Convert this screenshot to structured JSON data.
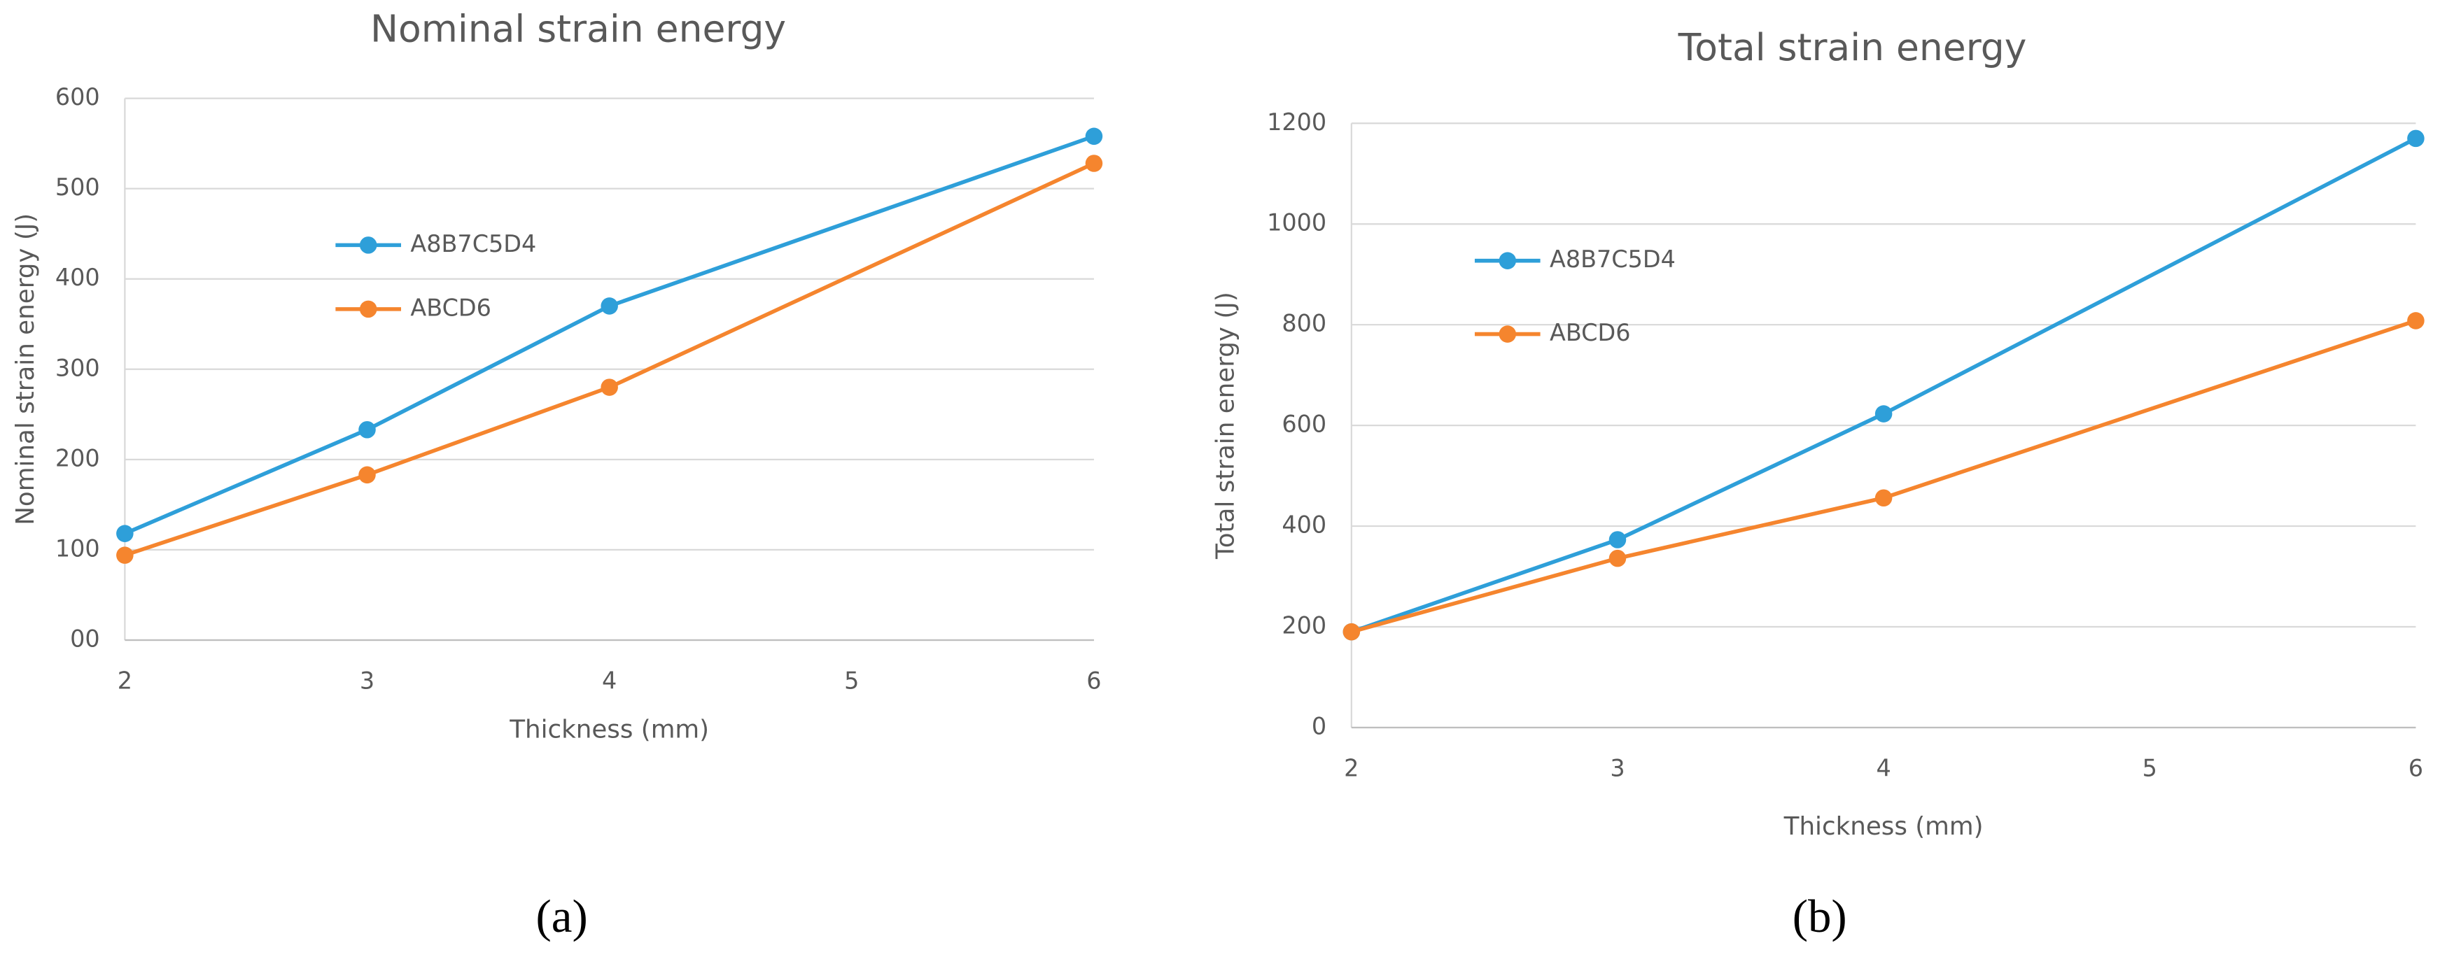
{
  "chart_data": [
    {
      "type": "line",
      "title": "Nominal strain energy",
      "x_label": "Thickness (mm)",
      "y_label": "Nominal strain energy (J)",
      "x": [
        2,
        3,
        4,
        6
      ],
      "xlim": [
        2,
        6
      ],
      "xticks": [
        2,
        3,
        4,
        5,
        6
      ],
      "ylim": [
        0,
        600
      ],
      "yticks": [
        {
          "value": 0,
          "label": "00"
        },
        100,
        200,
        300,
        400,
        500,
        600
      ],
      "grid": true,
      "series": [
        {
          "name": "A8B7C5D4",
          "color": "#2e9fd9",
          "values": [
            118,
            233,
            370,
            558
          ]
        },
        {
          "name": "ABCD6",
          "color": "#f5852e",
          "values": [
            94,
            183,
            280,
            528
          ]
        }
      ],
      "caption": "(a)"
    },
    {
      "type": "line",
      "title": "Total strain energy",
      "x_label": "Thickness (mm)",
      "y_label": "Total strain energy (J)",
      "x": [
        2,
        3,
        4,
        6
      ],
      "xlim": [
        2,
        6
      ],
      "xticks": [
        2,
        3,
        4,
        5,
        6
      ],
      "ylim": [
        0,
        1200
      ],
      "yticks": [
        0,
        200,
        400,
        600,
        800,
        1000,
        1200
      ],
      "grid": true,
      "series": [
        {
          "name": "A8B7C5D4",
          "color": "#2e9fd9",
          "values": [
            190,
            373,
            623,
            1170
          ]
        },
        {
          "name": "ABCD6",
          "color": "#f5852e",
          "values": [
            190,
            336,
            456,
            808
          ]
        }
      ],
      "caption": "(b)"
    }
  ]
}
